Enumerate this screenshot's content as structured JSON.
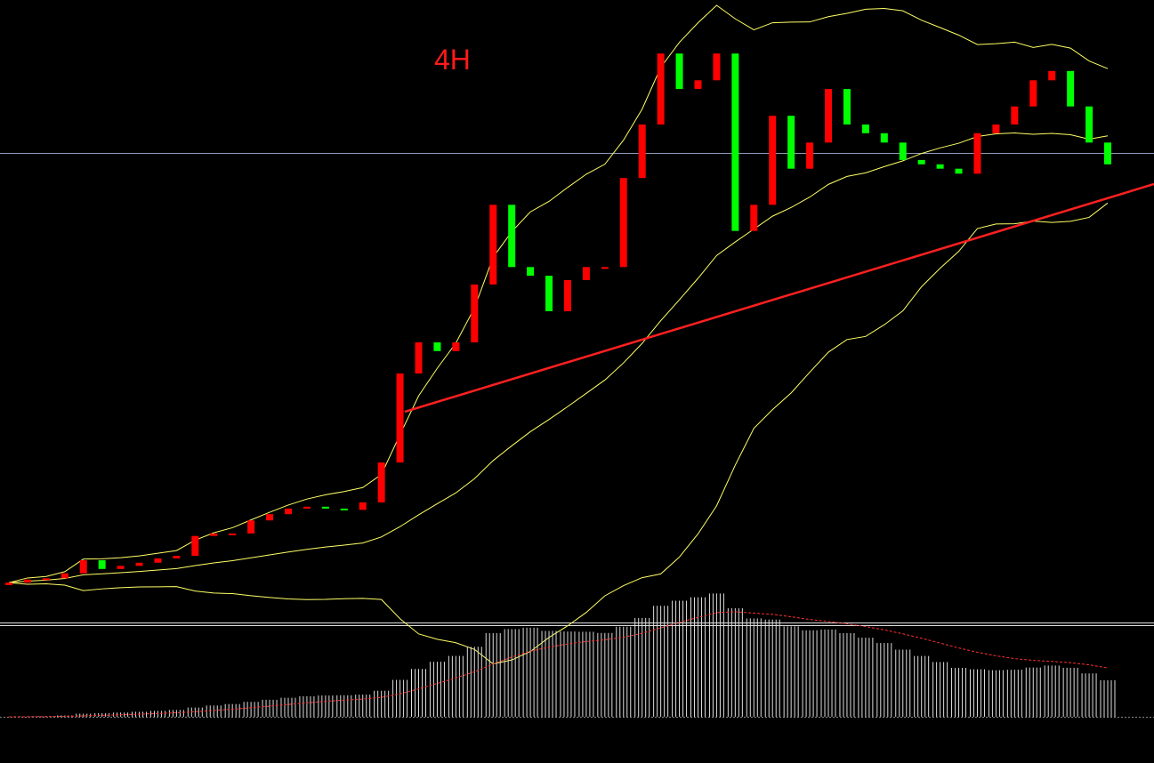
{
  "chart_data": {
    "type": "candlestick",
    "title": "4H",
    "up_color": "#ff0000",
    "down_color": "#00ff00",
    "band_color": "#ffff66",
    "ylim": [
      0,
      100
    ],
    "open": [
      6.0,
      6.4,
      6.9,
      7.1,
      7.9,
      10,
      8.6,
      9.1,
      9.6,
      10.3,
      10.7,
      13.9,
      14.3,
      14.3,
      16.4,
      17.4,
      18.3,
      18.6,
      18.3,
      18.1,
      19.3,
      25.7,
      40,
      45,
      43.6,
      45,
      54.3,
      67.1,
      57.1,
      55.7,
      50,
      55,
      57.1,
      57.1,
      71.4,
      80,
      91.4,
      85.7,
      87.1,
      91.4,
      62.9,
      67.1,
      81.4,
      72.9,
      77.1,
      85.7,
      80,
      78.6,
      77.1,
      74.3,
      73.6,
      72.9,
      72.1,
      78.6,
      80,
      82.9,
      87.1,
      88.6,
      82.9,
      77.1
    ],
    "close": [
      6.4,
      6.9,
      7.1,
      7.9,
      10,
      8.6,
      9.1,
      9.6,
      10.3,
      10.7,
      13.9,
      14.3,
      14.3,
      16.4,
      17.4,
      18.3,
      18.6,
      18.3,
      18.1,
      19.3,
      25.7,
      40,
      45,
      43.6,
      45,
      54.3,
      67.1,
      57.1,
      55.7,
      50,
      55,
      57.1,
      57.1,
      71.4,
      80,
      91.4,
      85.7,
      87.1,
      91.4,
      62.9,
      67.1,
      81.4,
      72.9,
      77.1,
      85.7,
      80,
      78.6,
      77.1,
      74.3,
      73.6,
      72.9,
      72.1,
      78.6,
      80,
      82.9,
      87.1,
      88.6,
      82.9,
      77.1,
      73.6
    ]
  }
}
